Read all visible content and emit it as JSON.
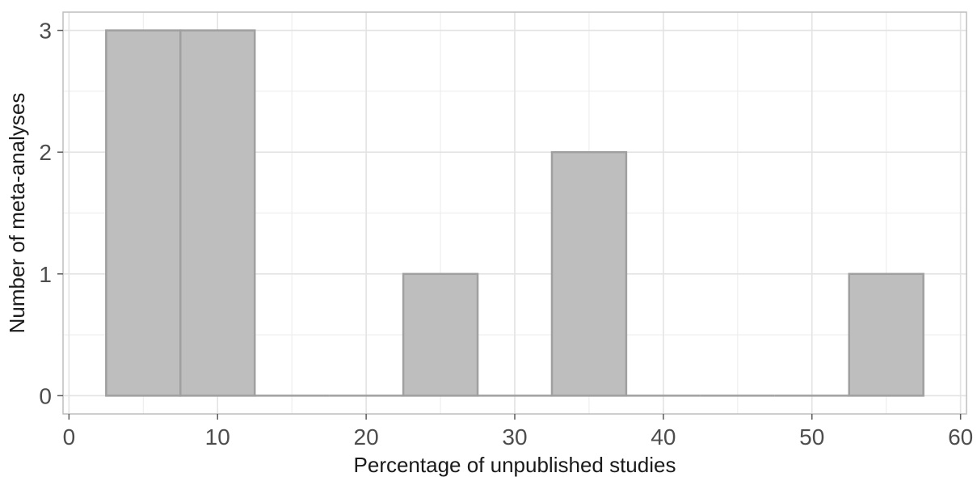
{
  "chart_data": {
    "type": "bar",
    "title": "",
    "xlabel": "Percentage of unpublished studies",
    "ylabel": "Number of meta-analyses",
    "xlim": [
      -0.4,
      60.4
    ],
    "ylim": [
      -0.15,
      3.15
    ],
    "x_ticks": [
      0,
      10,
      20,
      30,
      40,
      50,
      60
    ],
    "x_tick_labels": [
      "0",
      "10",
      "20",
      "30",
      "40",
      "50",
      "60"
    ],
    "x_minor_ticks": [
      5,
      15,
      25,
      35,
      45,
      55
    ],
    "y_ticks": [
      0,
      1,
      2,
      3
    ],
    "y_tick_labels": [
      "0",
      "1",
      "2",
      "3"
    ],
    "y_minor_ticks": [
      0.5,
      1.5,
      2.5
    ],
    "bin_width": 5,
    "bins": [
      {
        "center": 5,
        "count": 3
      },
      {
        "center": 10,
        "count": 3
      },
      {
        "center": 15,
        "count": 0
      },
      {
        "center": 20,
        "count": 0
      },
      {
        "center": 25,
        "count": 1
      },
      {
        "center": 30,
        "count": 0
      },
      {
        "center": 35,
        "count": 2
      },
      {
        "center": 40,
        "count": 0
      },
      {
        "center": 45,
        "count": 0
      },
      {
        "center": 50,
        "count": 0
      },
      {
        "center": 55,
        "count": 1
      }
    ],
    "grid": true,
    "bar_fill": "#bebebe",
    "bar_edge": "#a0a0a0",
    "grid_color": "#ebebeb",
    "panel_border": "#bdbdbd"
  }
}
